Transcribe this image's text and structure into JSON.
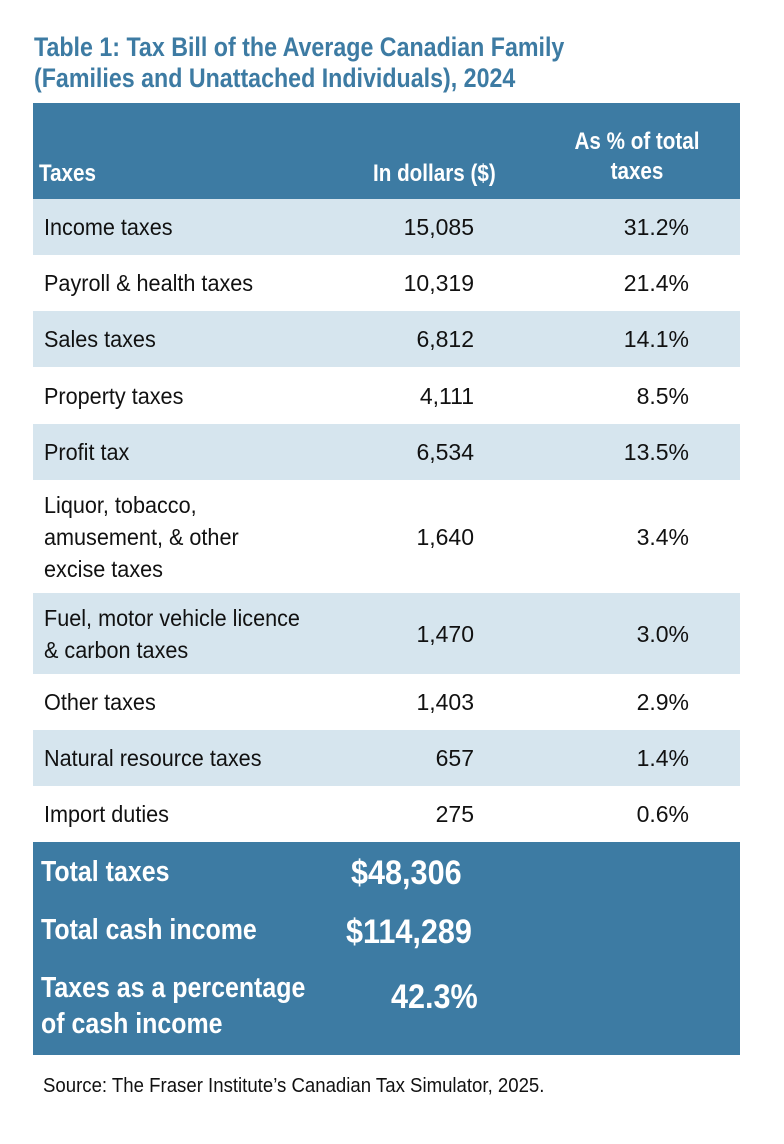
{
  "title": {
    "line1": "Table 1: Tax Bill of the Average Canadian Family",
    "line2": "(Families and Unattached Individuals), 2024"
  },
  "header": {
    "taxes": "Taxes",
    "dollars": "In dollars ($)",
    "pct_line1": "As % of total",
    "pct_line2": "taxes"
  },
  "rows": [
    {
      "label": [
        "Income taxes"
      ],
      "dollars": "15,085",
      "pct": "31.2%"
    },
    {
      "label": [
        "Payroll & health taxes"
      ],
      "dollars": "10,319",
      "pct": "21.4%"
    },
    {
      "label": [
        "Sales taxes"
      ],
      "dollars": "6,812",
      "pct": "14.1%"
    },
    {
      "label": [
        "Property taxes"
      ],
      "dollars": "4,111",
      "pct": "8.5%"
    },
    {
      "label": [
        "Profit tax"
      ],
      "dollars": "6,534",
      "pct": "13.5%"
    },
    {
      "label": [
        "Liquor, tobacco,",
        "amusement, & other",
        "excise taxes"
      ],
      "dollars": "1,640",
      "pct": "3.4%"
    },
    {
      "label": [
        "Fuel, motor vehicle licence",
        "& carbon taxes"
      ],
      "dollars": "1,470",
      "pct": "3.0%"
    },
    {
      "label": [
        "Other taxes"
      ],
      "dollars": "1,403",
      "pct": "2.9%"
    },
    {
      "label": [
        "Natural resource taxes"
      ],
      "dollars": "657",
      "pct": "1.4%"
    },
    {
      "label": [
        "Import duties"
      ],
      "dollars": "275",
      "pct": "0.6%"
    }
  ],
  "totals": {
    "total_taxes_label": "Total taxes",
    "total_taxes_value": "$48,306",
    "total_income_label": "Total cash income",
    "total_income_value": "$114,289",
    "pct_label_line1": "Taxes as a percentage",
    "pct_label_line2": "of cash income",
    "pct_value": "42.3%"
  },
  "source": "Source: The Fraser Institute’s Canadian Tax Simulator, 2025."
}
